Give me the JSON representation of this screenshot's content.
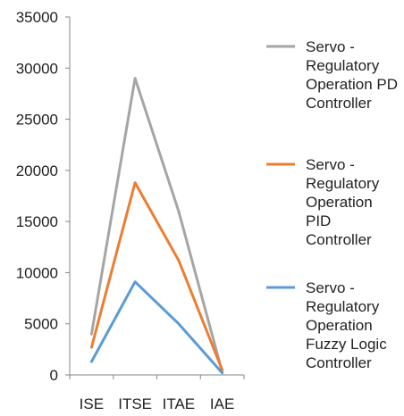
{
  "chart_data": {
    "type": "line",
    "title": "",
    "xlabel": "",
    "ylabel": "",
    "categories": [
      "ISE",
      "ITSE",
      "ITAE",
      "IAE"
    ],
    "ylim": [
      0,
      35000
    ],
    "yticks": [
      0,
      5000,
      10000,
      15000,
      20000,
      25000,
      30000,
      35000
    ],
    "y_tick_labels": [
      "0",
      "5000",
      "10000",
      "15000",
      "20000",
      "25000",
      "30000",
      "35000"
    ],
    "grid": false,
    "legend_position": "right",
    "series": [
      {
        "name": "Servo - Regulatory Operation PD Controller",
        "legend_lines": [
          "Servo -",
          "Regulatory",
          "Operation PD",
          "Controller"
        ],
        "color": "#a5a5a5",
        "values": [
          4000,
          29000,
          16000,
          300
        ]
      },
      {
        "name": "Servo - Regulatory Operation PID Controller",
        "legend_lines": [
          "Servo -",
          "Regulatory",
          "Operation",
          "PID",
          "Controller"
        ],
        "color": "#ed7d31",
        "values": [
          2700,
          18800,
          11200,
          500
        ]
      },
      {
        "name": "Servo - Regulatory Operation Fuzzy Logic Controller",
        "legend_lines": [
          "Servo -",
          "Regulatory",
          "Operation",
          "Fuzzy Logic",
          "Controller"
        ],
        "color": "#5b9bd5",
        "values": [
          1300,
          9100,
          5000,
          200
        ]
      }
    ]
  }
}
